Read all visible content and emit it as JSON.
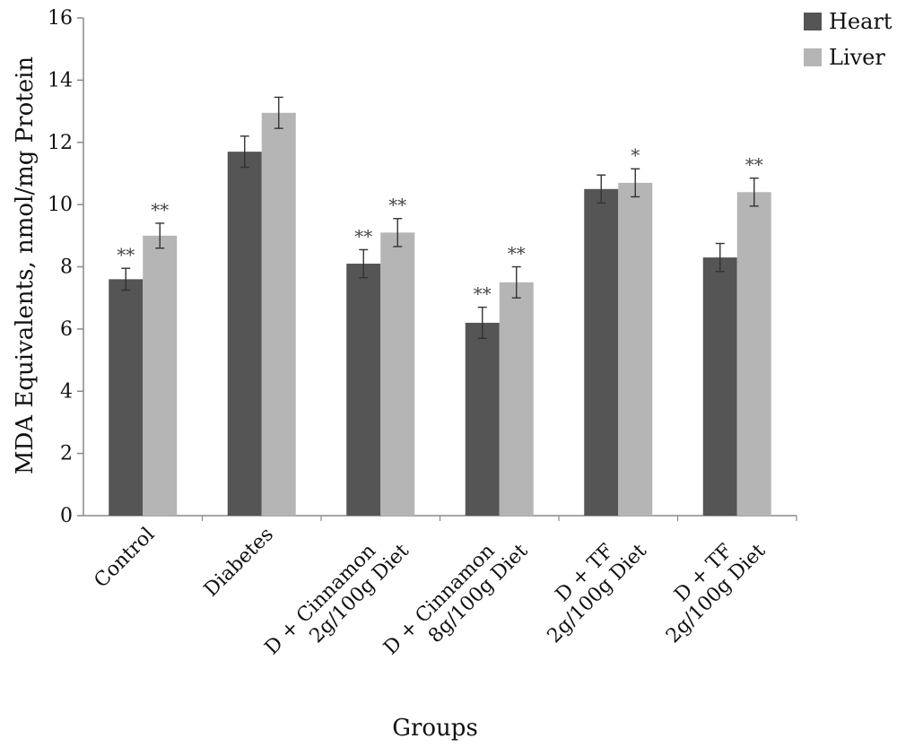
{
  "chart_data": {
    "type": "bar",
    "title": "",
    "xlabel": "Groups",
    "ylabel": "MDA Equivalents, nmol/mg Protein",
    "ylim": [
      0,
      16
    ],
    "yticks": [
      0,
      2,
      4,
      6,
      8,
      10,
      12,
      14,
      16
    ],
    "grid": false,
    "legend_position": "top-right",
    "categories": [
      [
        "Control"
      ],
      [
        "Diabetes"
      ],
      [
        "D + Cinnamon",
        "2g/100g Diet"
      ],
      [
        "D + Cinnamon",
        "8g/100g Diet"
      ],
      [
        "D + TF",
        "2g/100g Diet"
      ],
      [
        "D + TF",
        "2g/100g Diet"
      ]
    ],
    "series": [
      {
        "name": "Heart",
        "color": "#555555",
        "values": [
          7.6,
          11.7,
          8.1,
          6.2,
          10.5,
          8.3
        ],
        "errors": [
          0.35,
          0.5,
          0.45,
          0.5,
          0.45,
          0.45
        ],
        "significance": [
          "**",
          "",
          "**",
          "**",
          "",
          ""
        ]
      },
      {
        "name": "Liver",
        "color": "#b5b5b5",
        "values": [
          9.0,
          12.95,
          9.1,
          7.5,
          10.7,
          10.4
        ],
        "errors": [
          0.4,
          0.5,
          0.45,
          0.5,
          0.45,
          0.45
        ],
        "significance": [
          "**",
          "",
          "**",
          "**",
          "*",
          "**"
        ]
      }
    ]
  }
}
